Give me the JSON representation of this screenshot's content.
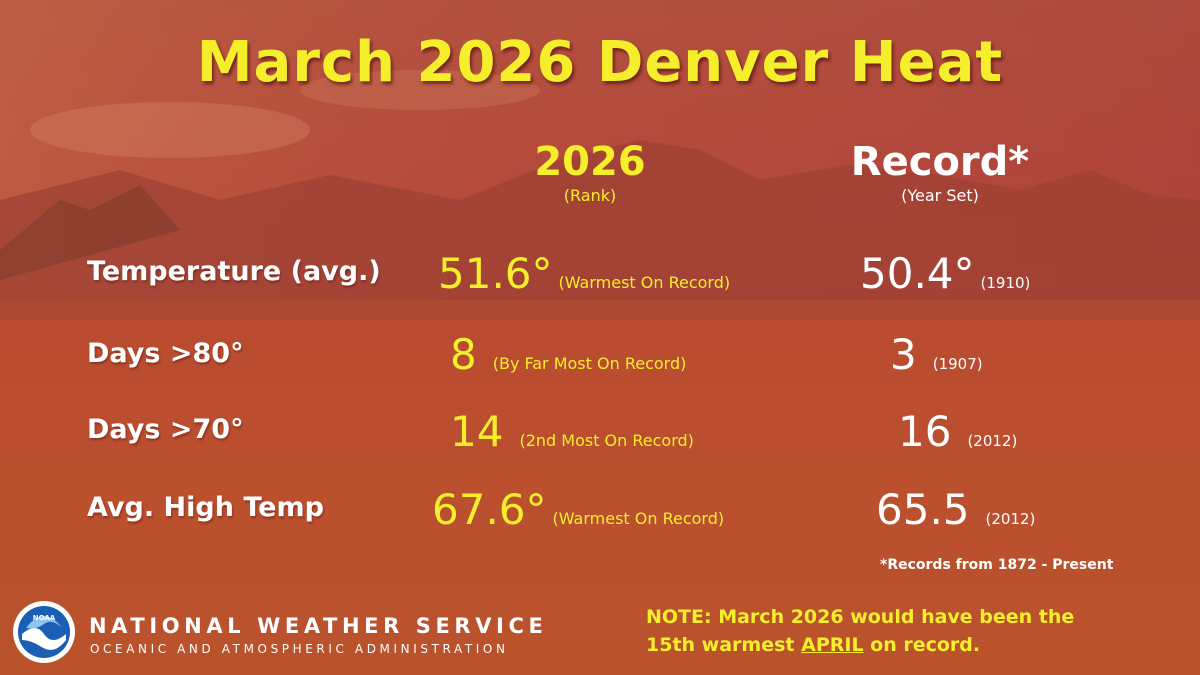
{
  "title": "March 2026 Denver Heat",
  "columns": {
    "current": {
      "heading": "2026",
      "sub": "(Rank)"
    },
    "record": {
      "heading": "Record*",
      "sub": "(Year Set)"
    }
  },
  "rows": [
    {
      "label": "Temperature (avg.)",
      "value": "51.6°",
      "rank": "(Warmest On Record)",
      "record": "50.4°",
      "year": "(1910)"
    },
    {
      "label": "Days >80°",
      "value": "8",
      "rank": "(By Far Most On Record)",
      "record": "3",
      "year": "(1907)"
    },
    {
      "label": "Days >70°",
      "value": "14",
      "rank": "(2nd Most On Record)",
      "record": "16",
      "year": "(2012)"
    },
    {
      "label": "Avg. High Temp",
      "value": "67.6°",
      "rank": "(Warmest On Record)",
      "record": "65.5",
      "year": "(2012)"
    }
  ],
  "footnote": "*Records from 1872 - Present",
  "branding": {
    "agency": "NATIONAL WEATHER SERVICE",
    "parent": "OCEANIC AND ATMOSPHERIC ADMINISTRATION",
    "logo_text": "NOAA"
  },
  "note": {
    "line1": "NOTE:  March 2026 would have been the",
    "line2_prefix": "15th warmest ",
    "line2_emph": "APRIL",
    "line2_suffix": " on record."
  },
  "colors": {
    "accent_yellow": "#f5ef2b",
    "background_red": "#b5473a",
    "text_white": "#ffffff"
  }
}
